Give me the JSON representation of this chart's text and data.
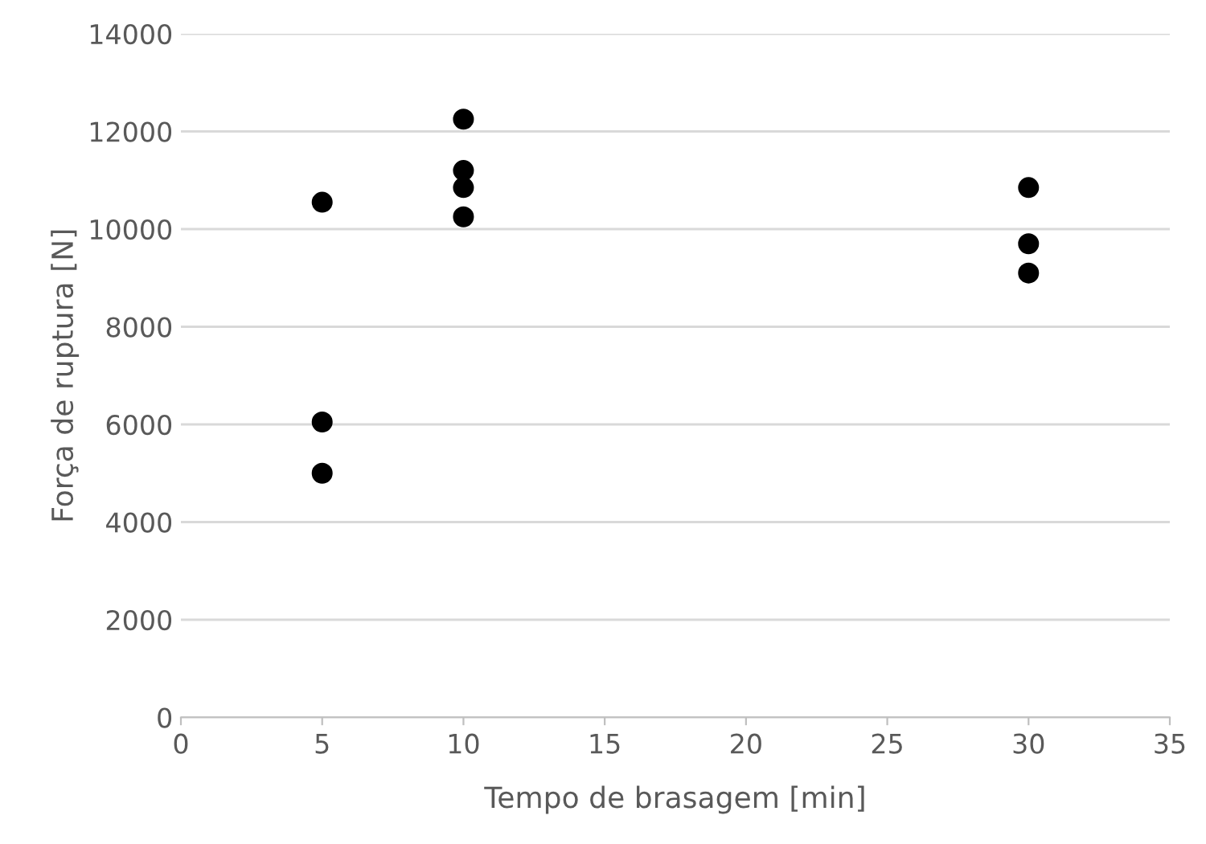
{
  "chart_data": {
    "type": "scatter",
    "xlabel": "Tempo de brasagem [min]",
    "ylabel": "Força de ruptura [N]",
    "series": [
      {
        "color": "#000000",
        "x": [
          5,
          5,
          5,
          10,
          10,
          10,
          10,
          30,
          30,
          30
        ],
        "values": [
          10550,
          6050,
          5000,
          12250,
          11200,
          10850,
          10250,
          10850,
          9700,
          9100
        ]
      }
    ],
    "xlim": [
      0,
      35
    ],
    "xticks": [
      0,
      5,
      10,
      15,
      20,
      25,
      30,
      35
    ],
    "ylim": [
      0,
      14000
    ],
    "yticks": [
      0,
      2000,
      4000,
      6000,
      8000,
      10000,
      12000,
      14000
    ],
    "grid": "y",
    "marker": "circle",
    "legend": false
  }
}
